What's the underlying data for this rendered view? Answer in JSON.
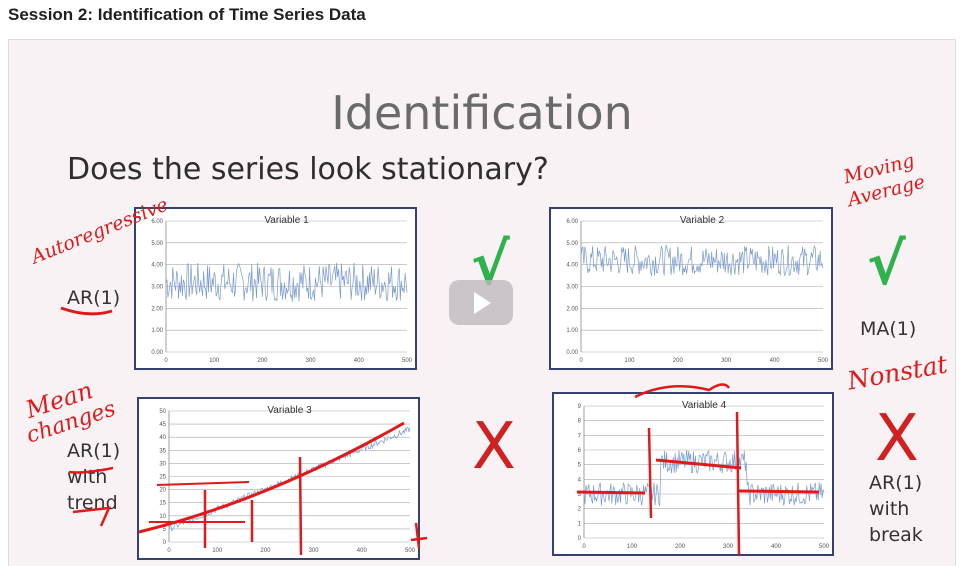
{
  "page": {
    "title": "Session 2: Identification of Time Series Data"
  },
  "slide": {
    "heading": "Identification",
    "question": "Does the series look stationary?",
    "left_labels": {
      "ar1": "AR(1)",
      "ar1_b": "AR(1)",
      "with": "with",
      "trend": "trend"
    },
    "right_labels": {
      "ma1": "MA(1)",
      "ar1": "AR(1)",
      "with": "with",
      "break": "break"
    },
    "marks": {
      "check": "√",
      "cross": "X"
    },
    "annotations": {
      "autoregressive": "Autoregressive",
      "moving1": "Moving",
      "moving2": "Average",
      "nonstat": "Nonstat",
      "mean1": "Mean",
      "mean2": "changes"
    }
  },
  "colors": {
    "check": "#2fb24c",
    "cross": "#d0201f",
    "ink": "#e01a1a",
    "series": "#7b9ad0",
    "chart_border": "#36416d"
  },
  "chart_data": [
    {
      "type": "line",
      "title": "Variable 1",
      "ylim": [
        0,
        6
      ],
      "xlim": [
        0,
        500
      ],
      "yticks": [
        "0.00",
        "1.00",
        "2.00",
        "3.00",
        "4.00",
        "5.00",
        "6.00"
      ],
      "xticks": [
        "0",
        "100",
        "200",
        "300",
        "400",
        "500"
      ],
      "pattern": "noise",
      "mean": 3.2,
      "amp": 0.9
    },
    {
      "type": "line",
      "title": "Variable 2",
      "ylim": [
        0,
        6
      ],
      "xlim": [
        0,
        500
      ],
      "yticks": [
        "0.00",
        "1.00",
        "2.00",
        "3.00",
        "4.00",
        "5.00",
        "6.00"
      ],
      "xticks": [
        "0",
        "100",
        "200",
        "300",
        "400",
        "500"
      ],
      "pattern": "noise",
      "mean": 4.2,
      "amp": 0.7
    },
    {
      "type": "line",
      "title": "Variable 3",
      "ylim": [
        0,
        50
      ],
      "xlim": [
        0,
        500
      ],
      "yticks": [
        "0",
        "5",
        "10",
        "15",
        "20",
        "25",
        "30",
        "35",
        "40",
        "45",
        "50"
      ],
      "xticks": [
        "0",
        "100",
        "200",
        "300",
        "400",
        "500"
      ],
      "pattern": "trend",
      "start": 5,
      "end": 43,
      "amp": 1.2
    },
    {
      "type": "line",
      "title": "Variable 4",
      "ylim": [
        0,
        9
      ],
      "xlim": [
        0,
        500
      ],
      "yticks": [
        "0",
        "1",
        "2",
        "3",
        "4",
        "5",
        "6",
        "7",
        "8",
        "9"
      ],
      "xticks": [
        "0",
        "100",
        "200",
        "300",
        "400",
        "500"
      ],
      "pattern": "break",
      "levels": [
        [
          0,
          160,
          3.0
        ],
        [
          160,
          340,
          5.2
        ],
        [
          340,
          500,
          3.0
        ]
      ],
      "amp": 0.8
    }
  ]
}
